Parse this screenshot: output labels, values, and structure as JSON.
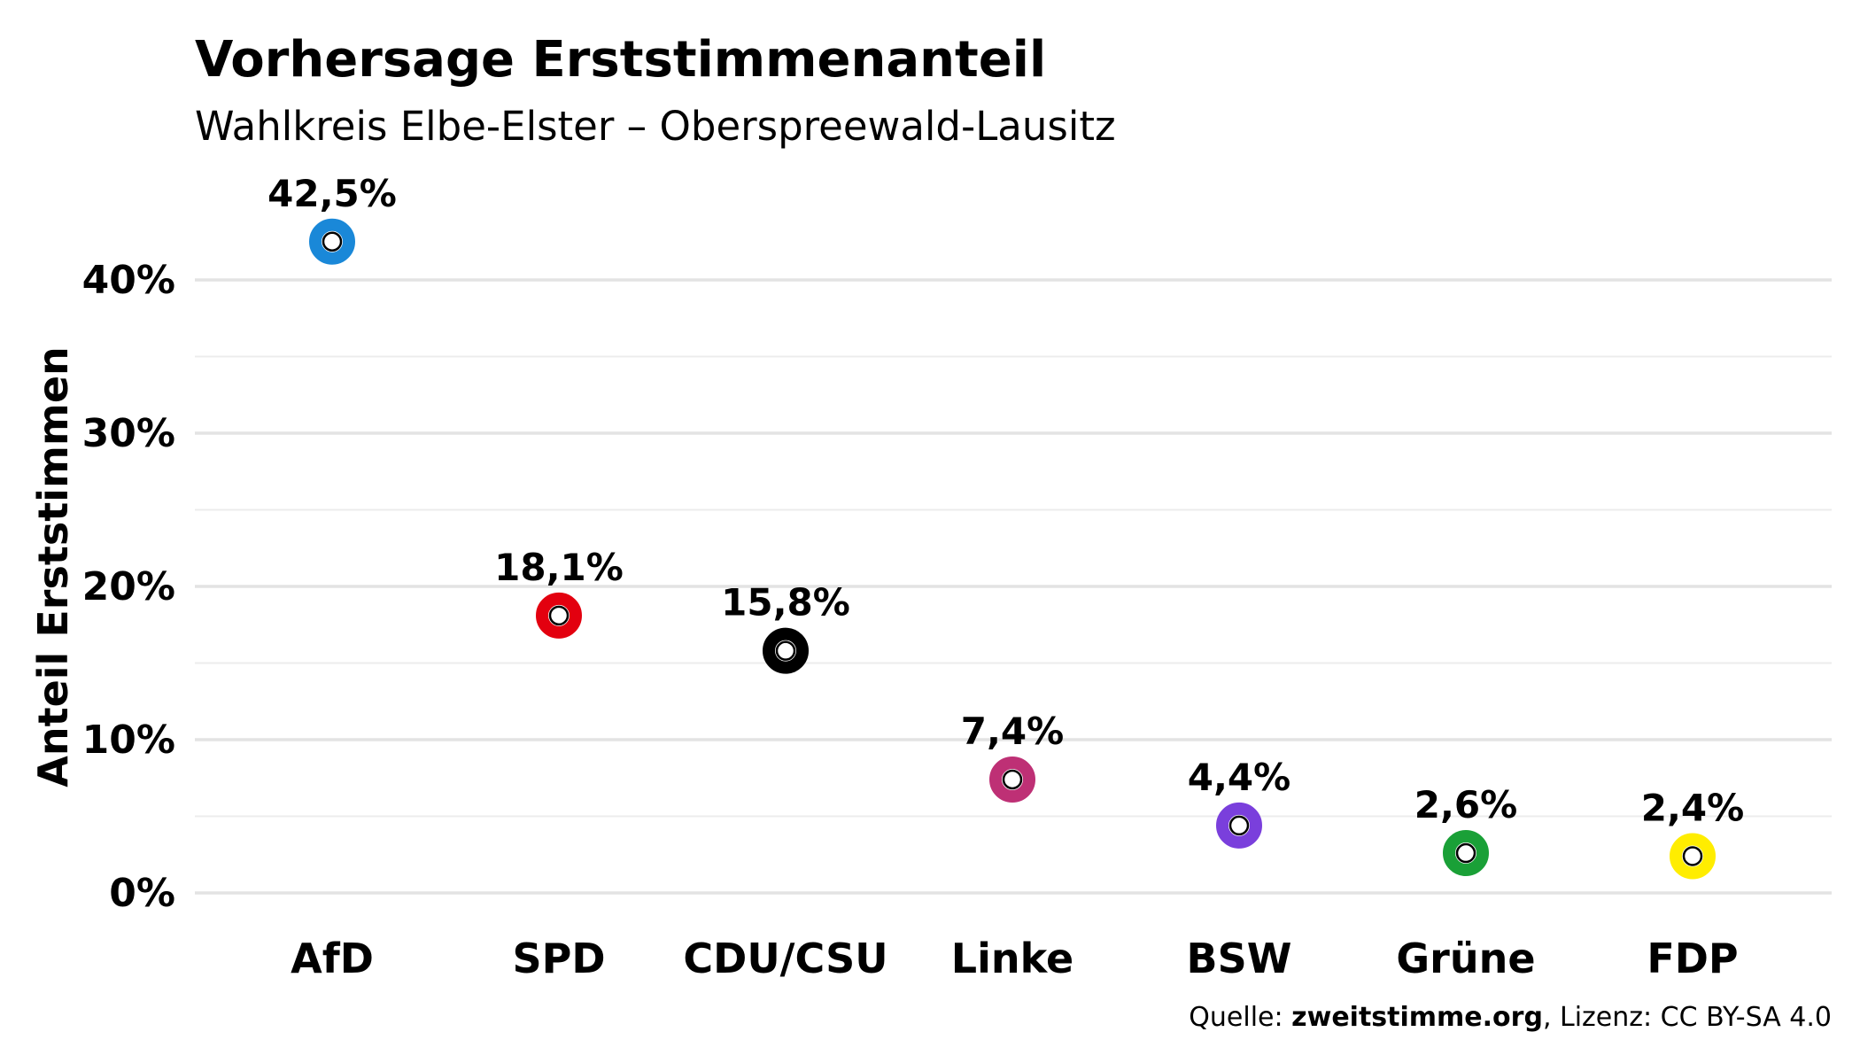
{
  "chart_data": {
    "type": "scatter",
    "title": "Vorhersage Erststimmenanteil",
    "subtitle": "Wahlkreis Elbe-Elster – Oberspreewald-Lausitz",
    "xlabel": "",
    "ylabel": "Anteil Erststimmen",
    "ylim": [
      -2,
      46
    ],
    "yticks": [
      0,
      10,
      20,
      30,
      40
    ],
    "ytick_labels": [
      "0%",
      "10%",
      "20%",
      "30%",
      "40%"
    ],
    "minor_gridlines": [
      5,
      15,
      25,
      35
    ],
    "grid": true,
    "legend": "none",
    "categories": [
      "AfD",
      "SPD",
      "CDU/CSU",
      "Linke",
      "BSW",
      "Grüne",
      "FDP"
    ],
    "values": [
      42.5,
      18.1,
      15.8,
      7.4,
      4.4,
      2.6,
      2.4
    ],
    "value_labels": [
      "42,5%",
      "18,1%",
      "15,8%",
      "7,4%",
      "4,4%",
      "2,6%",
      "2,4%"
    ],
    "colors": [
      "#1a88d8",
      "#e3000f",
      "#000000",
      "#be3075",
      "#7a3fdc",
      "#1aa037",
      "#ffed00"
    ]
  },
  "caption": {
    "prefix": "Quelle: ",
    "source": "zweitstimme.org",
    "suffix": ", Lizenz: CC BY-SA 4.0"
  }
}
